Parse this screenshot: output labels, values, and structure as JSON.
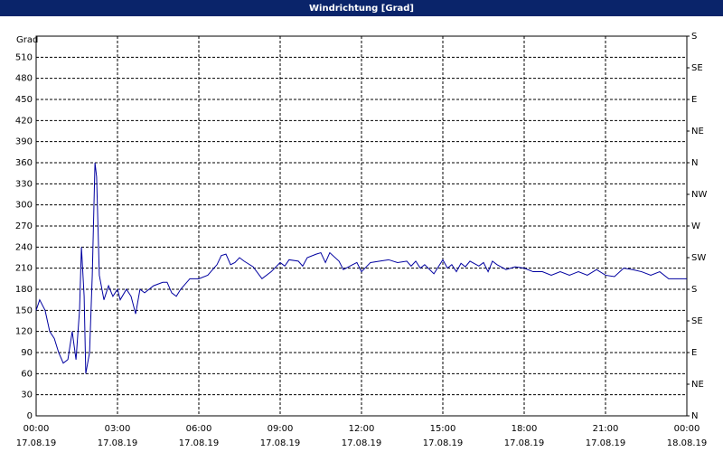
{
  "chart_data": {
    "type": "line",
    "title": "Windrichtung [Grad]",
    "ylabel": "Grad",
    "x": [
      0,
      0.13,
      0.33,
      0.5,
      0.67,
      0.83,
      1,
      1.17,
      1.33,
      1.47,
      1.6,
      1.67,
      1.77,
      1.83,
      1.97,
      2.07,
      2.17,
      2.23,
      2.33,
      2.5,
      2.67,
      2.83,
      3,
      3.1,
      3.33,
      3.5,
      3.67,
      3.83,
      4,
      4.33,
      4.67,
      4.83,
      5,
      5.17,
      5.33,
      5.67,
      6,
      6.33,
      6.67,
      6.83,
      7,
      7.17,
      7.33,
      7.5,
      7.67,
      8,
      8.33,
      8.67,
      9,
      9.17,
      9.33,
      9.67,
      9.83,
      10,
      10.33,
      10.5,
      10.67,
      10.83,
      11.17,
      11.33,
      11.67,
      11.83,
      12,
      12.33,
      12.67,
      13,
      13.33,
      13.67,
      13.83,
      14,
      14.17,
      14.33,
      14.67,
      15,
      15.17,
      15.33,
      15.5,
      15.67,
      15.83,
      16,
      16.33,
      16.5,
      16.67,
      16.83,
      17,
      17.33,
      17.67,
      18,
      18.33,
      18.67,
      19,
      19.33,
      19.67,
      20,
      20.33,
      20.67,
      21,
      21.33,
      21.67,
      22,
      22.33,
      22.67,
      23,
      23.33,
      23.67,
      24
    ],
    "series": [
      {
        "name": "Windrichtung",
        "color": "#0000a0",
        "values": [
          150,
          165,
          150,
          120,
          110,
          90,
          75,
          80,
          120,
          80,
          150,
          240,
          170,
          60,
          90,
          200,
          360,
          340,
          200,
          165,
          185,
          170,
          180,
          165,
          180,
          170,
          145,
          180,
          175,
          185,
          190,
          190,
          175,
          170,
          180,
          195,
          195,
          200,
          215,
          228,
          230,
          215,
          218,
          225,
          220,
          212,
          195,
          205,
          218,
          213,
          222,
          220,
          213,
          225,
          230,
          232,
          218,
          232,
          220,
          208,
          215,
          218,
          205,
          218,
          220,
          222,
          218,
          220,
          213,
          220,
          210,
          215,
          202,
          222,
          210,
          215,
          205,
          217,
          212,
          220,
          213,
          218,
          205,
          220,
          215,
          208,
          212,
          210,
          205,
          205,
          200,
          205,
          200,
          205,
          200,
          208,
          200,
          198,
          210,
          208,
          205,
          200,
          205,
          195,
          195,
          195
        ]
      }
    ],
    "xlim": [
      0,
      24
    ],
    "xticks": [
      {
        "value": 0,
        "label": "00:00",
        "date": "17.08.19"
      },
      {
        "value": 3,
        "label": "03:00",
        "date": "17.08.19"
      },
      {
        "value": 6,
        "label": "06:00",
        "date": "17.08.19"
      },
      {
        "value": 9,
        "label": "09:00",
        "date": "17.08.19"
      },
      {
        "value": 12,
        "label": "12:00",
        "date": "17.08.19"
      },
      {
        "value": 15,
        "label": "15:00",
        "date": "17.08.19"
      },
      {
        "value": 18,
        "label": "18:00",
        "date": "17.08.19"
      },
      {
        "value": 21,
        "label": "21:00",
        "date": "17.08.19"
      },
      {
        "value": 24,
        "label": "00:00",
        "date": "18.08.19"
      }
    ],
    "ylim": [
      0,
      540
    ],
    "yticks": [
      0,
      30,
      60,
      90,
      120,
      150,
      180,
      210,
      240,
      270,
      300,
      330,
      360,
      390,
      420,
      450,
      480,
      510
    ],
    "y2lim": [
      0,
      540
    ],
    "y2ticks": [
      {
        "value": 0,
        "label": "N"
      },
      {
        "value": 45,
        "label": "NE"
      },
      {
        "value": 90,
        "label": "E"
      },
      {
        "value": 135,
        "label": "SE"
      },
      {
        "value": 180,
        "label": "S"
      },
      {
        "value": 225,
        "label": "SW"
      },
      {
        "value": 270,
        "label": "W"
      },
      {
        "value": 315,
        "label": "NW"
      },
      {
        "value": 360,
        "label": "N"
      },
      {
        "value": 405,
        "label": "NE"
      },
      {
        "value": 450,
        "label": "E"
      },
      {
        "value": 495,
        "label": "SE"
      },
      {
        "value": 540,
        "label": "S"
      }
    ],
    "grid": true
  }
}
